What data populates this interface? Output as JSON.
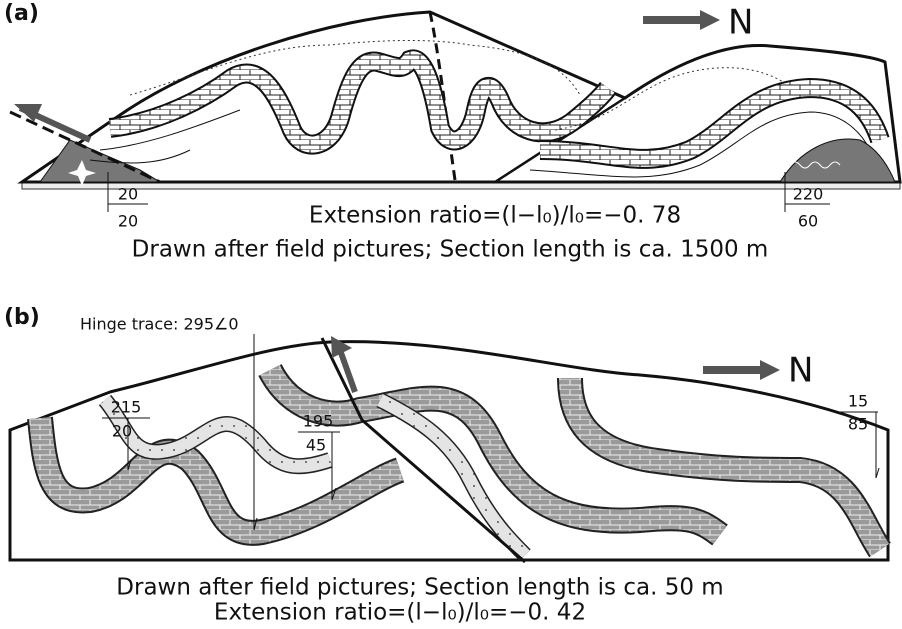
{
  "panel_a": {
    "label": "(a)",
    "north": "N",
    "attitudes": [
      {
        "strike": "20",
        "dip": "20"
      },
      {
        "strike": "220",
        "dip": "60"
      }
    ],
    "extension_ratio": "Extension ratio=(l−l₀)/l₀=−0. 78",
    "caption": "Drawn after field pictures; Section length is ca. 1500 m"
  },
  "panel_b": {
    "label": "(b)",
    "north": "N",
    "hinge_trace": "Hinge trace: 295∠0",
    "attitudes": [
      {
        "strike": "215",
        "dip": "20"
      },
      {
        "strike": "195",
        "dip": "45"
      },
      {
        "strike": "15",
        "dip": "85"
      }
    ],
    "caption": "Drawn after field pictures; Section length is ca. 50 m",
    "extension_ratio": "Extension ratio=(l−l₀)/l₀=−0. 42"
  }
}
